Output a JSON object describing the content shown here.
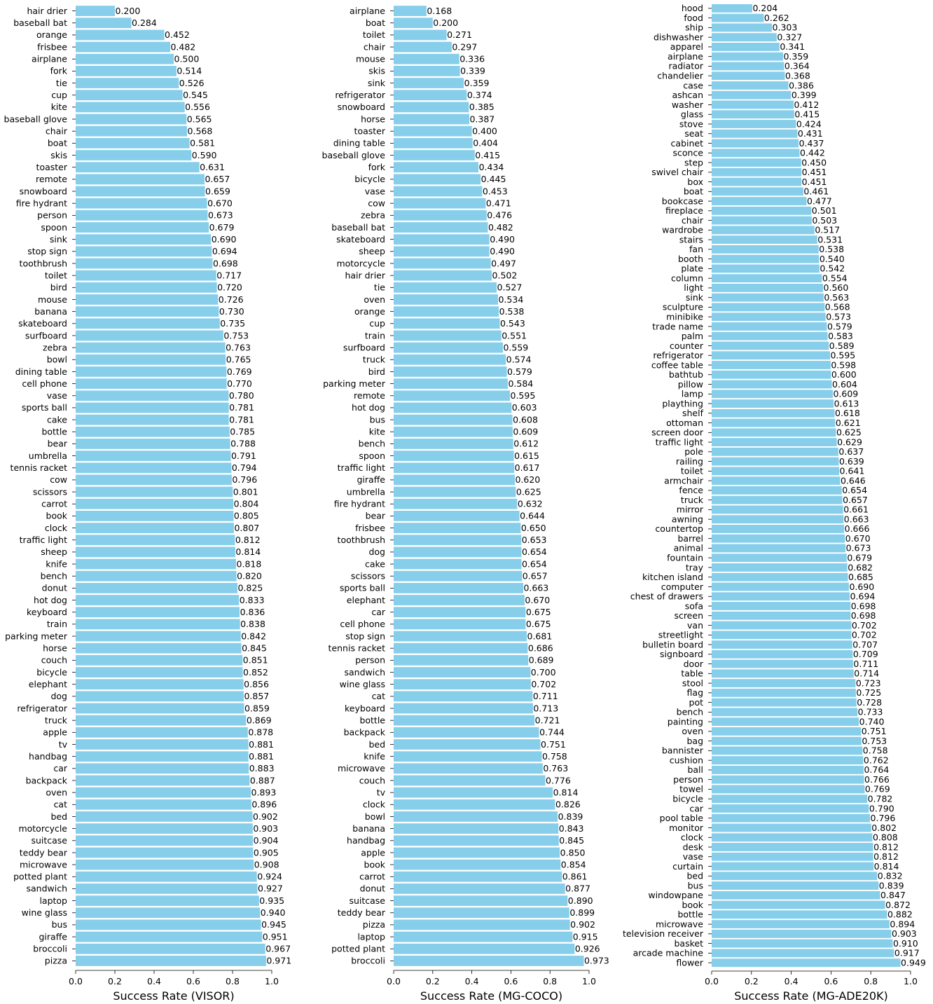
{
  "chart_data": [
    {
      "type": "bar",
      "orientation": "horizontal",
      "xlabel": "Success Rate (VISOR)",
      "xlim": [
        0.0,
        1.0
      ],
      "xticks": [
        "0.0",
        "0.2",
        "0.4",
        "0.6",
        "0.8",
        "1.0"
      ],
      "bar_color": "#87CEEB",
      "grid": false,
      "categories": [
        "hair drier",
        "baseball bat",
        "orange",
        "frisbee",
        "airplane",
        "fork",
        "tie",
        "cup",
        "kite",
        "baseball glove",
        "chair",
        "boat",
        "skis",
        "toaster",
        "remote",
        "snowboard",
        "fire hydrant",
        "person",
        "spoon",
        "sink",
        "stop sign",
        "toothbrush",
        "toilet",
        "bird",
        "mouse",
        "banana",
        "skateboard",
        "surfboard",
        "zebra",
        "bowl",
        "dining table",
        "cell phone",
        "vase",
        "sports ball",
        "cake",
        "bottle",
        "bear",
        "umbrella",
        "tennis racket",
        "cow",
        "scissors",
        "carrot",
        "book",
        "clock",
        "traffic light",
        "sheep",
        "knife",
        "bench",
        "donut",
        "hot dog",
        "keyboard",
        "train",
        "parking meter",
        "horse",
        "couch",
        "bicycle",
        "elephant",
        "dog",
        "refrigerator",
        "truck",
        "apple",
        "tv",
        "handbag",
        "car",
        "backpack",
        "oven",
        "cat",
        "bed",
        "motorcycle",
        "suitcase",
        "teddy bear",
        "microwave",
        "potted plant",
        "sandwich",
        "laptop",
        "wine glass",
        "bus",
        "giraffe",
        "broccoli",
        "pizza"
      ],
      "values": [
        0.2,
        0.284,
        0.452,
        0.482,
        0.5,
        0.514,
        0.526,
        0.545,
        0.556,
        0.565,
        0.568,
        0.581,
        0.59,
        0.631,
        0.657,
        0.659,
        0.67,
        0.673,
        0.679,
        0.69,
        0.694,
        0.698,
        0.717,
        0.72,
        0.726,
        0.73,
        0.735,
        0.753,
        0.763,
        0.765,
        0.769,
        0.77,
        0.78,
        0.781,
        0.781,
        0.785,
        0.788,
        0.791,
        0.794,
        0.796,
        0.801,
        0.804,
        0.805,
        0.807,
        0.812,
        0.814,
        0.818,
        0.82,
        0.825,
        0.833,
        0.836,
        0.838,
        0.842,
        0.845,
        0.851,
        0.852,
        0.856,
        0.857,
        0.859,
        0.869,
        0.878,
        0.881,
        0.881,
        0.883,
        0.887,
        0.893,
        0.896,
        0.902,
        0.903,
        0.904,
        0.905,
        0.908,
        0.924,
        0.927,
        0.935,
        0.94,
        0.945,
        0.951,
        0.967,
        0.971
      ],
      "value_labels": [
        "0.200",
        "0.284",
        "0.452",
        "0.482",
        "0.500",
        "0.514",
        "0.526",
        "0.545",
        "0.556",
        "0.565",
        "0.568",
        "0.581",
        "0.590",
        "0.631",
        "0.657",
        "0.659",
        "0.670",
        "0.673",
        "0.679",
        "0.690",
        "0.694",
        "0.698",
        "0.717",
        "0.720",
        "0.726",
        "0.730",
        "0.735",
        "0.753",
        "0.763",
        "0.765",
        "0.769",
        "0.770",
        "0.780",
        "0.781",
        "0.781",
        "0.785",
        "0.788",
        "0.791",
        "0.794",
        "0.796",
        "0.801",
        "0.804",
        "0.805",
        "0.807",
        "0.812",
        "0.814",
        "0.818",
        "0.820",
        "0.825",
        "0.833",
        "0.836",
        "0.838",
        "0.842",
        "0.845",
        "0.851",
        "0.852",
        "0.856",
        "0.857",
        "0.859",
        "0.869",
        "0.878",
        "0.881",
        "0.881",
        "0.883",
        "0.887",
        "0.893",
        "0.896",
        "0.902",
        "0.903",
        "0.904",
        "0.905",
        "0.908",
        "0.924",
        "0.927",
        "0.935",
        "0.940",
        "0.945",
        "0.951",
        "0.967",
        "0.971"
      ]
    },
    {
      "type": "bar",
      "orientation": "horizontal",
      "xlabel": "Success Rate (MG-COCO)",
      "xlim": [
        0.0,
        1.0
      ],
      "xticks": [
        "0.0",
        "0.2",
        "0.4",
        "0.6",
        "0.8",
        "1.0"
      ],
      "bar_color": "#87CEEB",
      "grid": false,
      "categories": [
        "airplane",
        "boat",
        "toilet",
        "chair",
        "mouse",
        "skis",
        "sink",
        "refrigerator",
        "snowboard",
        "horse",
        "toaster",
        "dining table",
        "baseball glove",
        "fork",
        "bicycle",
        "vase",
        "cow",
        "zebra",
        "baseball bat",
        "skateboard",
        "sheep",
        "motorcycle",
        "hair drier",
        "tie",
        "oven",
        "orange",
        "cup",
        "train",
        "surfboard",
        "truck",
        "bird",
        "parking meter",
        "remote",
        "hot dog",
        "bus",
        "kite",
        "bench",
        "spoon",
        "traffic light",
        "giraffe",
        "umbrella",
        "fire hydrant",
        "bear",
        "frisbee",
        "toothbrush",
        "dog",
        "cake",
        "scissors",
        "sports ball",
        "elephant",
        "car",
        "cell phone",
        "stop sign",
        "tennis racket",
        "person",
        "sandwich",
        "wine glass",
        "cat",
        "keyboard",
        "bottle",
        "backpack",
        "bed",
        "knife",
        "microwave",
        "couch",
        "tv",
        "clock",
        "bowl",
        "banana",
        "handbag",
        "apple",
        "book",
        "carrot",
        "donut",
        "suitcase",
        "teddy bear",
        "pizza",
        "laptop",
        "potted plant",
        "broccoli"
      ],
      "values": [
        0.168,
        0.2,
        0.271,
        0.297,
        0.336,
        0.339,
        0.359,
        0.374,
        0.385,
        0.387,
        0.4,
        0.404,
        0.415,
        0.434,
        0.445,
        0.453,
        0.471,
        0.476,
        0.482,
        0.49,
        0.49,
        0.497,
        0.502,
        0.527,
        0.534,
        0.538,
        0.543,
        0.551,
        0.559,
        0.574,
        0.579,
        0.584,
        0.595,
        0.603,
        0.608,
        0.609,
        0.612,
        0.615,
        0.617,
        0.62,
        0.625,
        0.632,
        0.644,
        0.65,
        0.653,
        0.654,
        0.654,
        0.657,
        0.663,
        0.67,
        0.675,
        0.675,
        0.681,
        0.686,
        0.689,
        0.7,
        0.702,
        0.711,
        0.713,
        0.721,
        0.744,
        0.751,
        0.758,
        0.763,
        0.776,
        0.814,
        0.826,
        0.839,
        0.843,
        0.845,
        0.85,
        0.854,
        0.861,
        0.877,
        0.89,
        0.899,
        0.902,
        0.915,
        0.926,
        0.973
      ],
      "value_labels": [
        "0.168",
        "0.200",
        "0.271",
        "0.297",
        "0.336",
        "0.339",
        "0.359",
        "0.374",
        "0.385",
        "0.387",
        "0.400",
        "0.404",
        "0.415",
        "0.434",
        "0.445",
        "0.453",
        "0.471",
        "0.476",
        "0.482",
        "0.490",
        "0.490",
        "0.497",
        "0.502",
        "0.527",
        "0.534",
        "0.538",
        "0.543",
        "0.551",
        "0.559",
        "0.574",
        "0.579",
        "0.584",
        "0.595",
        "0.603",
        "0.608",
        "0.609",
        "0.612",
        "0.615",
        "0.617",
        "0.620",
        "0.625",
        "0.632",
        "0.644",
        "0.650",
        "0.653",
        "0.654",
        "0.654",
        "0.657",
        "0.663",
        "0.670",
        "0.675",
        "0.675",
        "0.681",
        "0.686",
        "0.689",
        "0.700",
        "0.702",
        "0.711",
        "0.713",
        "0.721",
        "0.744",
        "0.751",
        "0.758",
        "0.763",
        "0.776",
        "0.814",
        "0.826",
        "0.839",
        "0.843",
        "0.845",
        "0.850",
        "0.854",
        "0.861",
        "0.877",
        "0.890",
        "0.899",
        "0.902",
        "0.915",
        "0.926",
        "0.973"
      ]
    },
    {
      "type": "bar",
      "orientation": "horizontal",
      "xlabel": "Success Rate (MG-ADE20K)",
      "xlim": [
        0.0,
        1.0
      ],
      "xticks": [
        "0.0",
        "0.2",
        "0.4",
        "0.6",
        "0.8",
        "1.0"
      ],
      "bar_color": "#87CEEB",
      "grid": false,
      "categories": [
        "hood",
        "food",
        "ship",
        "dishwasher",
        "apparel",
        "airplane",
        "radiator",
        "chandelier",
        "case",
        "ashcan",
        "washer",
        "glass",
        "stove",
        "seat",
        "cabinet",
        "sconce",
        "step",
        "swivel chair",
        "box",
        "boat",
        "bookcase",
        "fireplace",
        "chair",
        "wardrobe",
        "stairs",
        "fan",
        "booth",
        "plate",
        "column",
        "light",
        "sink",
        "sculpture",
        "minibike",
        "trade name",
        "palm",
        "counter",
        "refrigerator",
        "coffee table",
        "bathtub",
        "pillow",
        "lamp",
        "plaything",
        "shelf",
        "ottoman",
        "screen door",
        "traffic light",
        "pole",
        "railing",
        "toilet",
        "armchair",
        "fence",
        "truck",
        "mirror",
        "awning",
        "countertop",
        "barrel",
        "animal",
        "fountain",
        "tray",
        "kitchen island",
        "computer",
        "chest of drawers",
        "sofa",
        "screen",
        "van",
        "streetlight",
        "bulletin board",
        "signboard",
        "door",
        "table",
        "stool",
        "flag",
        "pot",
        "bench",
        "painting",
        "oven",
        "bag",
        "bannister",
        "cushion",
        "ball",
        "person",
        "towel",
        "bicycle",
        "car",
        "pool table",
        "monitor",
        "clock",
        "desk",
        "vase",
        "curtain",
        "bed",
        "bus",
        "windowpane",
        "book",
        "bottle",
        "microwave",
        "television receiver",
        "basket",
        "arcade machine",
        "flower"
      ],
      "values": [
        0.204,
        0.262,
        0.303,
        0.327,
        0.341,
        0.359,
        0.364,
        0.368,
        0.386,
        0.399,
        0.412,
        0.415,
        0.424,
        0.431,
        0.437,
        0.442,
        0.45,
        0.451,
        0.451,
        0.461,
        0.477,
        0.501,
        0.503,
        0.517,
        0.531,
        0.538,
        0.54,
        0.542,
        0.554,
        0.56,
        0.563,
        0.568,
        0.573,
        0.579,
        0.583,
        0.589,
        0.595,
        0.598,
        0.6,
        0.604,
        0.609,
        0.613,
        0.618,
        0.621,
        0.625,
        0.629,
        0.637,
        0.639,
        0.641,
        0.646,
        0.654,
        0.657,
        0.661,
        0.663,
        0.666,
        0.67,
        0.673,
        0.679,
        0.682,
        0.685,
        0.69,
        0.694,
        0.698,
        0.698,
        0.702,
        0.702,
        0.707,
        0.709,
        0.711,
        0.714,
        0.723,
        0.725,
        0.728,
        0.733,
        0.74,
        0.751,
        0.753,
        0.758,
        0.762,
        0.764,
        0.766,
        0.769,
        0.782,
        0.79,
        0.796,
        0.802,
        0.808,
        0.812,
        0.812,
        0.814,
        0.832,
        0.839,
        0.847,
        0.872,
        0.882,
        0.894,
        0.903,
        0.91,
        0.917,
        0.949
      ],
      "value_labels": [
        "0.204",
        "0.262",
        "0.303",
        "0.327",
        "0.341",
        "0.359",
        "0.364",
        "0.368",
        "0.386",
        "0.399",
        "0.412",
        "0.415",
        "0.424",
        "0.431",
        "0.437",
        "0.442",
        "0.450",
        "0.451",
        "0.451",
        "0.461",
        "0.477",
        "0.501",
        "0.503",
        "0.517",
        "0.531",
        "0.538",
        "0.540",
        "0.542",
        "0.554",
        "0.560",
        "0.563",
        "0.568",
        "0.573",
        "0.579",
        "0.583",
        "0.589",
        "0.595",
        "0.598",
        "0.600",
        "0.604",
        "0.609",
        "0.613",
        "0.618",
        "0.621",
        "0.625",
        "0.629",
        "0.637",
        "0.639",
        "0.641",
        "0.646",
        "0.654",
        "0.657",
        "0.661",
        "0.663",
        "0.666",
        "0.670",
        "0.673",
        "0.679",
        "0.682",
        "0.685",
        "0.690",
        "0.694",
        "0.698",
        "0.698",
        "0.702",
        "0.702",
        "0.707",
        "0.709",
        "0.711",
        "0.714",
        "0.723",
        "0.725",
        "0.728",
        "0.733",
        "0.740",
        "0.751",
        "0.753",
        "0.758",
        "0.762",
        "0.764",
        "0.766",
        "0.769",
        "0.782",
        "0.790",
        "0.796",
        "0.802",
        "0.808",
        "0.812",
        "0.812",
        "0.814",
        "0.832",
        "0.839",
        "0.847",
        "0.872",
        "0.882",
        "0.894",
        "0.903",
        "0.910",
        "0.917",
        "0.949"
      ]
    }
  ]
}
